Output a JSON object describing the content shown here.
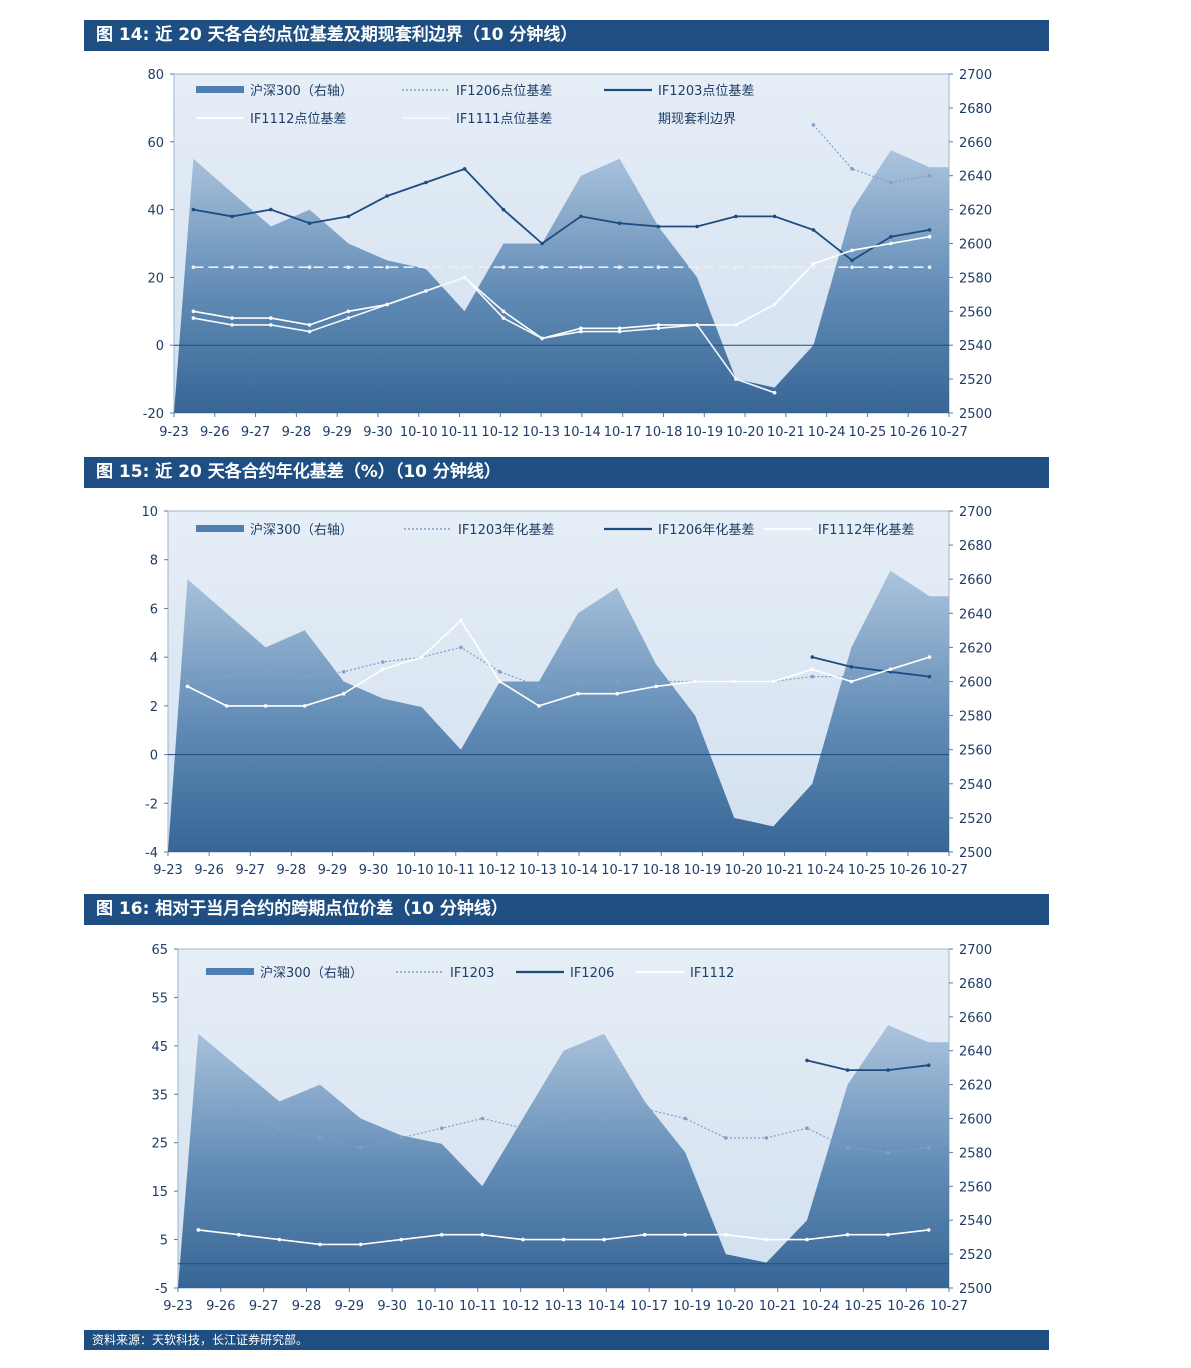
{
  "charts": [
    {
      "title": "图 14:  近 20 天各合约点位基差及期现套利边界（10 分钟线）",
      "left_ticks": [
        "80",
        "60",
        "40",
        "20",
        "0",
        "-20"
      ],
      "right_ticks": [
        "2700",
        "2680",
        "2660",
        "2640",
        "2620",
        "2600",
        "2580",
        "2560",
        "2540",
        "2520",
        "2500"
      ],
      "x_ticks": [
        "9-23",
        "9-26",
        "9-27",
        "9-28",
        "9-29",
        "9-30",
        "10-10",
        "10-11",
        "10-12",
        "10-13",
        "10-14",
        "10-17",
        "10-18",
        "10-19",
        "10-20",
        "10-21",
        "10-24",
        "10-25",
        "10-26",
        "10-27"
      ],
      "legend": [
        "沪深300（右轴）",
        "IF1206点位基差",
        "IF1203点位基差",
        "IF1112点位基差",
        "IF1111点位基差",
        "期现套利边界"
      ]
    },
    {
      "title": "图 15:  近 20 天各合约年化基差（%）（10 分钟线）",
      "left_ticks": [
        "10",
        "8",
        "6",
        "4",
        "2",
        "0",
        "-2",
        "-4"
      ],
      "right_ticks": [
        "2700",
        "2680",
        "2660",
        "2640",
        "2620",
        "2600",
        "2580",
        "2560",
        "2540",
        "2520",
        "2500"
      ],
      "x_ticks": [
        "9-23",
        "9-26",
        "9-27",
        "9-28",
        "9-29",
        "9-30",
        "10-10",
        "10-11",
        "10-12",
        "10-13",
        "10-14",
        "10-17",
        "10-18",
        "10-19",
        "10-20",
        "10-21",
        "10-24",
        "10-25",
        "10-26",
        "10-27"
      ],
      "legend": [
        "沪深300（右轴）",
        "IF1203年化基差",
        "IF1206年化基差",
        "IF1112年化基差"
      ]
    },
    {
      "title": "图 16:  相对于当月合约的跨期点位价差（10 分钟线）",
      "left_ticks": [
        "65",
        "55",
        "45",
        "35",
        "25",
        "15",
        "5",
        "-5"
      ],
      "right_ticks": [
        "2700",
        "2680",
        "2660",
        "2640",
        "2620",
        "2600",
        "2580",
        "2560",
        "2540",
        "2520",
        "2500"
      ],
      "x_ticks": [
        "9-23",
        "9-26",
        "9-27",
        "9-28",
        "9-29",
        "9-30",
        "10-10",
        "10-11",
        "10-12",
        "10-13",
        "10-14",
        "10-17",
        "10-19",
        "10-20",
        "10-21",
        "10-24",
        "10-25",
        "10-26",
        "10-27"
      ],
      "legend": [
        "沪深300（右轴）",
        "IF1203",
        "IF1206",
        "IF1112"
      ]
    }
  ],
  "footer": "资料来源：天软科技，长江证券研究部。",
  "chart_data": [
    {
      "type": "line",
      "title": "图 14:  近 20 天各合约点位基差及期现套利边界（10 分钟线）",
      "categories": [
        "9-23",
        "9-26",
        "9-27",
        "9-28",
        "9-29",
        "9-30",
        "10-10",
        "10-11",
        "10-12",
        "10-13",
        "10-14",
        "10-17",
        "10-18",
        "10-19",
        "10-20",
        "10-21",
        "10-24",
        "10-25",
        "10-26",
        "10-27"
      ],
      "ylim": [
        -20,
        80
      ],
      "y2lim": [
        2500,
        2700
      ],
      "series": [
        {
          "name": "沪深300（右轴）",
          "axis": "right",
          "values": [
            2650,
            2630,
            2610,
            2620,
            2600,
            2590,
            2585,
            2560,
            2600,
            2600,
            2640,
            2650,
            2610,
            2580,
            2520,
            2515,
            2540,
            2620,
            2655,
            2645
          ]
        },
        {
          "name": "IF1206点位基差",
          "values": [
            null,
            null,
            null,
            null,
            null,
            null,
            null,
            null,
            null,
            null,
            null,
            null,
            null,
            null,
            null,
            null,
            65,
            52,
            48,
            50
          ]
        },
        {
          "name": "IF1203点位基差",
          "values": [
            40,
            38,
            40,
            36,
            38,
            44,
            48,
            52,
            40,
            30,
            38,
            36,
            35,
            35,
            38,
            38,
            34,
            25,
            32,
            34
          ]
        },
        {
          "name": "IF1112点位基差",
          "values": [
            10,
            8,
            8,
            6,
            10,
            12,
            16,
            20,
            10,
            2,
            5,
            5,
            6,
            6,
            6,
            12,
            24,
            28,
            30,
            32
          ]
        },
        {
          "name": "IF1111点位基差",
          "values": [
            8,
            6,
            6,
            4,
            8,
            12,
            16,
            20,
            8,
            2,
            4,
            4,
            5,
            6,
            -10,
            -14,
            null,
            null,
            null,
            null
          ]
        },
        {
          "name": "期现套利边界",
          "values": [
            23,
            23,
            23,
            23,
            23,
            23,
            23,
            23,
            23,
            23,
            23,
            23,
            23,
            23,
            23,
            23,
            23,
            23,
            23,
            23
          ]
        }
      ]
    },
    {
      "type": "line",
      "title": "图 15:  近 20 天各合约年化基差（%）（10 分钟线）",
      "categories": [
        "9-23",
        "9-26",
        "9-27",
        "9-28",
        "9-29",
        "9-30",
        "10-10",
        "10-11",
        "10-12",
        "10-13",
        "10-14",
        "10-17",
        "10-18",
        "10-19",
        "10-20",
        "10-21",
        "10-24",
        "10-25",
        "10-26",
        "10-27"
      ],
      "ylim": [
        -4,
        10
      ],
      "y2lim": [
        2500,
        2700
      ],
      "series": [
        {
          "name": "沪深300（右轴）",
          "axis": "right",
          "values": [
            2660,
            2640,
            2620,
            2630,
            2600,
            2590,
            2585,
            2560,
            2600,
            2600,
            2640,
            2655,
            2610,
            2580,
            2520,
            2515,
            2540,
            2620,
            2665,
            2650
          ]
        },
        {
          "name": "IF1203年化基差",
          "values": [
            3,
            3.2,
            3.4,
            3.2,
            3.4,
            3.8,
            4,
            4.4,
            3.4,
            2.8,
            3,
            3,
            3,
            3,
            3,
            3,
            3.2,
            3.2,
            3,
            3
          ]
        },
        {
          "name": "IF1206年化基差",
          "values": [
            null,
            null,
            null,
            null,
            null,
            null,
            null,
            null,
            null,
            null,
            null,
            null,
            null,
            null,
            null,
            null,
            4,
            3.6,
            3.4,
            3.2
          ]
        },
        {
          "name": "IF1112年化基差",
          "values": [
            2.8,
            2,
            2,
            2,
            2.5,
            3.5,
            4,
            5.5,
            3,
            2,
            2.5,
            2.5,
            2.8,
            3,
            3,
            3,
            3.5,
            3,
            3.5,
            4
          ]
        }
      ]
    },
    {
      "type": "line",
      "title": "图 16:  相对于当月合约的跨期点位价差（10 分钟线）",
      "categories": [
        "9-23",
        "9-26",
        "9-27",
        "9-28",
        "9-29",
        "9-30",
        "10-10",
        "10-11",
        "10-12",
        "10-13",
        "10-14",
        "10-17",
        "10-19",
        "10-20",
        "10-21",
        "10-24",
        "10-25",
        "10-26",
        "10-27"
      ],
      "ylim": [
        -5,
        65
      ],
      "y2lim": [
        2500,
        2700
      ],
      "series": [
        {
          "name": "沪深300（右轴）",
          "axis": "right",
          "values": [
            2650,
            2630,
            2610,
            2620,
            2600,
            2590,
            2585,
            2560,
            2600,
            2640,
            2650,
            2610,
            2580,
            2520,
            2515,
            2540,
            2620,
            2655,
            2645
          ]
        },
        {
          "name": "IF1203",
          "values": [
            30,
            32,
            28,
            26,
            24,
            26,
            28,
            30,
            28,
            30,
            30,
            32,
            30,
            26,
            26,
            28,
            24,
            23,
            24
          ]
        },
        {
          "name": "IF1206",
          "values": [
            null,
            null,
            null,
            null,
            null,
            null,
            null,
            null,
            null,
            null,
            null,
            null,
            null,
            null,
            null,
            42,
            40,
            40,
            41
          ]
        },
        {
          "name": "IF1112",
          "values": [
            7,
            6,
            5,
            4,
            4,
            5,
            6,
            6,
            5,
            5,
            5,
            6,
            6,
            6,
            5,
            5,
            6,
            6,
            7
          ]
        }
      ]
    }
  ]
}
